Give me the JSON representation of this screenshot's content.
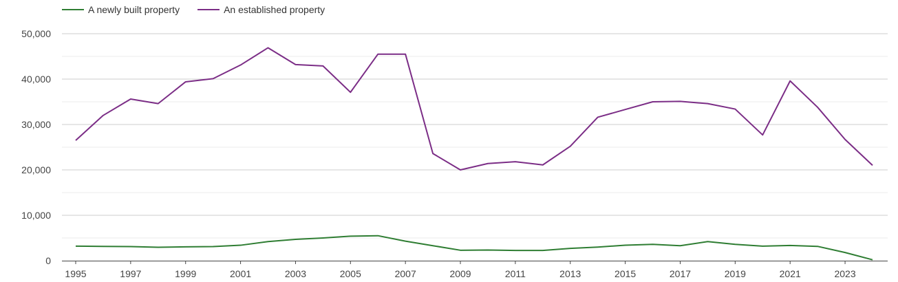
{
  "colors": {
    "newly_built": "#2e7d32",
    "established": "#7b2d86",
    "grid_major": "#cccccc",
    "grid_minor": "#ebebeb",
    "axis": "#444444"
  },
  "chart_data": {
    "type": "line",
    "title": "",
    "xlabel": "",
    "ylabel": "",
    "legend_position": "top-left",
    "grid": true,
    "x": [
      1995,
      1996,
      1997,
      1998,
      1999,
      2000,
      2001,
      2002,
      2003,
      2004,
      2005,
      2006,
      2007,
      2008,
      2009,
      2010,
      2011,
      2012,
      2013,
      2014,
      2015,
      2016,
      2017,
      2018,
      2019,
      2020,
      2021,
      2022,
      2023,
      2024
    ],
    "xlim": [
      1995,
      2024
    ],
    "ylim": [
      0,
      50000
    ],
    "x_ticks": [
      "1995",
      "1997",
      "1999",
      "2001",
      "2003",
      "2005",
      "2007",
      "2009",
      "2011",
      "2013",
      "2015",
      "2017",
      "2019",
      "2021",
      "2023"
    ],
    "y_ticks": [
      "0",
      "10,000",
      "20,000",
      "30,000",
      "40,000",
      "50,000"
    ],
    "series": [
      {
        "name": "A newly built property",
        "color_key": "newly_built",
        "values": [
          3200,
          3150,
          3100,
          2950,
          3050,
          3100,
          3400,
          4200,
          4700,
          5000,
          5400,
          5500,
          4300,
          3300,
          2300,
          2350,
          2250,
          2250,
          2700,
          3000,
          3400,
          3600,
          3300,
          4200,
          3600,
          3200,
          3350,
          3150,
          1800,
          200
        ]
      },
      {
        "name": "An established property",
        "color_key": "established",
        "values": [
          26500,
          32000,
          35600,
          34600,
          39400,
          40100,
          43100,
          46900,
          43200,
          42900,
          37100,
          45500,
          45500,
          23600,
          20000,
          21400,
          21800,
          21100,
          25200,
          31600,
          33300,
          35000,
          35100,
          34600,
          33400,
          27700,
          39600,
          33800,
          26700,
          21000
        ]
      }
    ]
  }
}
